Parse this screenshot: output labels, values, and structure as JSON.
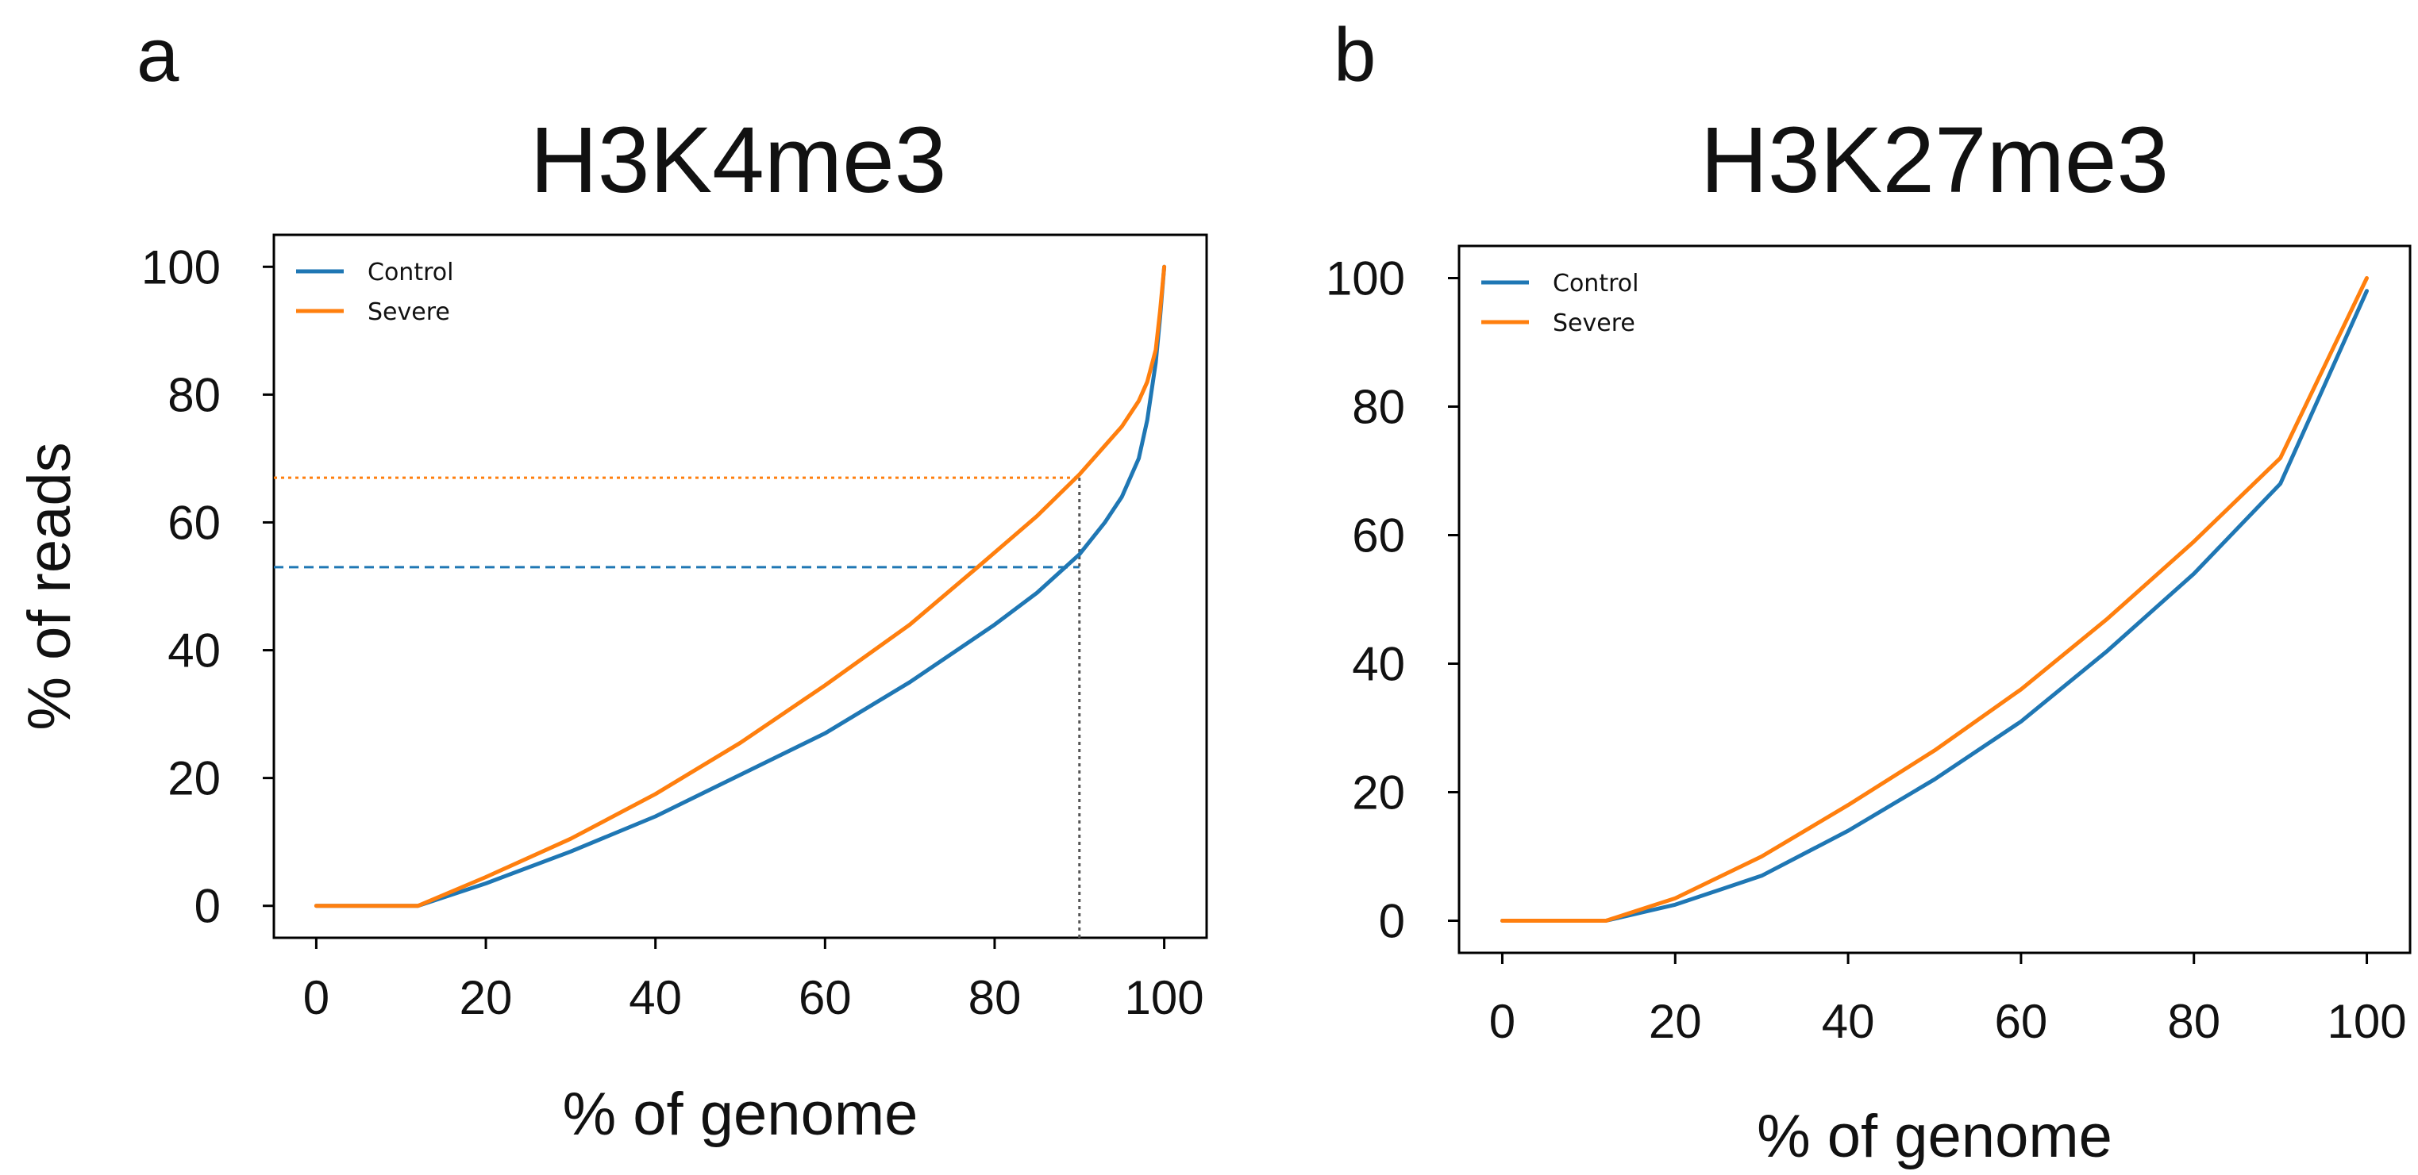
{
  "colors": {
    "control": "#1f77b4",
    "severe": "#ff7f0e",
    "reference": "#555555",
    "axes": "#000000",
    "background": "#ffffff"
  },
  "chart_data": [
    {
      "panel_label": "a",
      "type": "line",
      "title": "H3K4me3",
      "xlabel": "% of genome",
      "ylabel": "% of reads",
      "xlim": [
        -5,
        105
      ],
      "ylim": [
        -5,
        105
      ],
      "xticks": [
        0,
        20,
        40,
        60,
        80,
        100
      ],
      "xtick_labels": [
        "0",
        "20",
        "40",
        "60",
        "80",
        "100"
      ],
      "yticks": [
        0,
        20,
        40,
        60,
        80,
        100
      ],
      "ytick_labels": [
        "0",
        "20",
        "40",
        "60",
        "80",
        "100"
      ],
      "legend": {
        "position": "top-left",
        "entries": [
          "Control",
          "Severe"
        ]
      },
      "grid": false,
      "series": [
        {
          "name": "Control",
          "color_key": "control",
          "x": [
            0,
            12,
            20,
            30,
            40,
            50,
            60,
            70,
            80,
            85,
            90,
            93,
            95,
            97,
            98,
            99,
            99.5,
            100
          ],
          "y": [
            0,
            0,
            3.5,
            8.5,
            14,
            20.5,
            27,
            35,
            44,
            49,
            55,
            60,
            64,
            70,
            76,
            85,
            92,
            100
          ]
        },
        {
          "name": "Severe",
          "color_key": "severe",
          "x": [
            0,
            12,
            20,
            30,
            40,
            50,
            60,
            70,
            78,
            85,
            90,
            93,
            95,
            97,
            98,
            99,
            99.5,
            100
          ],
          "y": [
            0,
            0,
            4.5,
            10.5,
            17.5,
            25.5,
            34.5,
            44,
            53,
            61,
            67.5,
            72,
            75,
            79,
            82,
            87,
            93,
            100
          ]
        }
      ],
      "reference_lines": [
        {
          "type": "hline",
          "y": 53,
          "x_from": -5,
          "x_to": 90,
          "color_key": "control",
          "style": "dashed"
        },
        {
          "type": "hline",
          "y": 67,
          "x_from": -5,
          "x_to": 90,
          "color_key": "severe",
          "style": "dotted"
        },
        {
          "type": "vline",
          "x": 90,
          "y_from": -5,
          "y_to": 67,
          "color_key": "reference",
          "style": "dotted"
        }
      ]
    },
    {
      "panel_label": "b",
      "type": "line",
      "title": "H3K27me3",
      "xlabel": "% of genome",
      "ylabel": "",
      "xlim": [
        -5,
        105
      ],
      "ylim": [
        -5,
        105
      ],
      "xticks": [
        0,
        20,
        40,
        60,
        80,
        100
      ],
      "xtick_labels": [
        "0",
        "20",
        "40",
        "60",
        "80",
        "100"
      ],
      "yticks": [
        0,
        20,
        40,
        60,
        80,
        100
      ],
      "ytick_labels": [
        "0",
        "20",
        "40",
        "60",
        "80",
        "100"
      ],
      "legend": {
        "position": "top-left",
        "entries": [
          "Control",
          "Severe"
        ]
      },
      "grid": false,
      "series": [
        {
          "name": "Control",
          "color_key": "control",
          "x": [
            0,
            12,
            20,
            30,
            40,
            50,
            60,
            70,
            80,
            90,
            100
          ],
          "y": [
            0,
            0,
            2.5,
            7,
            14,
            22,
            31,
            42,
            54,
            68,
            98
          ]
        },
        {
          "name": "Severe",
          "color_key": "severe",
          "x": [
            0,
            12,
            20,
            30,
            40,
            50,
            60,
            70,
            80,
            90,
            100
          ],
          "y": [
            0,
            0,
            3.5,
            10,
            18,
            26.5,
            36,
            47,
            59,
            72,
            100
          ]
        }
      ],
      "reference_lines": []
    }
  ]
}
